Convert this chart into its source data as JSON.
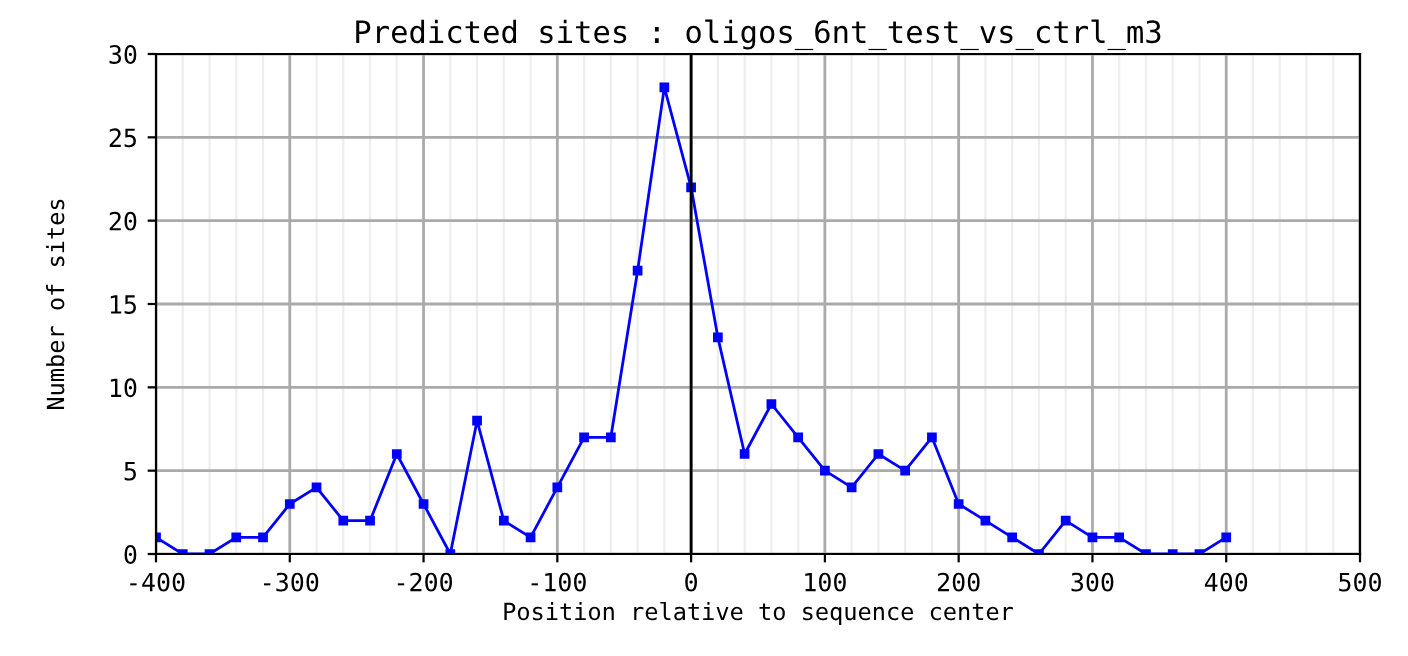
{
  "chart_data": {
    "type": "line",
    "title": "Predicted sites : oligos_6nt_test_vs_ctrl_m3",
    "xlabel": "Position relative to sequence center",
    "ylabel": "Number of sites",
    "x": [
      -400,
      -380,
      -360,
      -340,
      -320,
      -300,
      -280,
      -260,
      -240,
      -220,
      -200,
      -180,
      -160,
      -140,
      -120,
      -100,
      -80,
      -60,
      -40,
      -20,
      0,
      20,
      40,
      60,
      80,
      100,
      120,
      140,
      160,
      180,
      200,
      220,
      240,
      260,
      280,
      300,
      320,
      340,
      360,
      380,
      400
    ],
    "series": [
      {
        "color": "#0000ff",
        "values": [
          1,
          0,
          0,
          1,
          1,
          3,
          4,
          2,
          2,
          6,
          3,
          0,
          8,
          2,
          1,
          4,
          7,
          7,
          17,
          28,
          22,
          13,
          6,
          9,
          7,
          5,
          4,
          6,
          5,
          7,
          3,
          2,
          1,
          0,
          2,
          1,
          1,
          0,
          0,
          0,
          1
        ]
      }
    ],
    "xlim": [
      -400,
      500
    ],
    "xticks": [
      -400,
      -300,
      -200,
      -100,
      0,
      100,
      200,
      300,
      400,
      500
    ],
    "ylim": [
      0,
      30
    ],
    "yticks": [
      0,
      5,
      10,
      15,
      20,
      25,
      30
    ],
    "ref_lines": [
      {
        "axis": "x",
        "value": 0,
        "color": "#000000"
      }
    ],
    "grid": true,
    "marker": "square",
    "line_style": "solid",
    "legend": false
  }
}
